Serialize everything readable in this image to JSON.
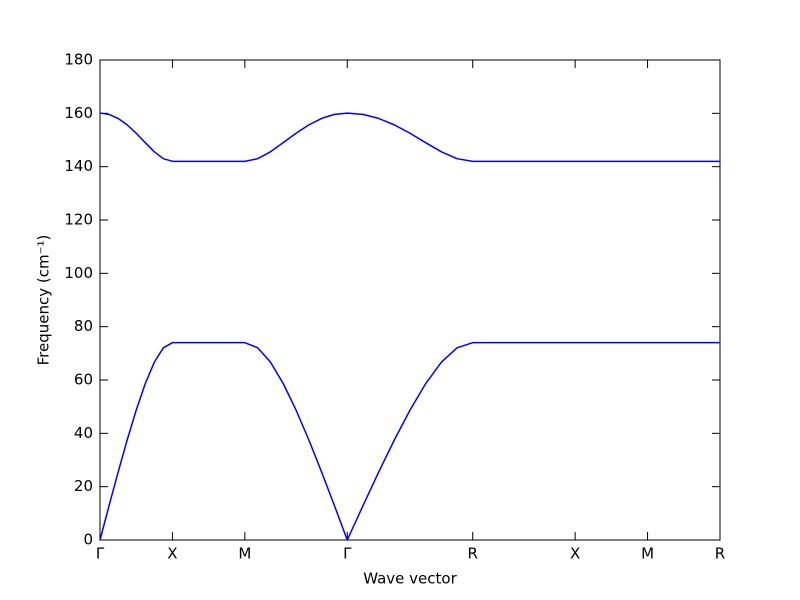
{
  "chart_data": {
    "type": "line",
    "xlabel": "Wave vector",
    "ylabel": "Frequency (cm⁻¹)",
    "x": [
      0,
      0.0625,
      0.125,
      0.1875,
      0.25,
      0.3125,
      0.375,
      0.4375,
      0.5,
      0.75,
      1.0,
      1.0884,
      1.1768,
      1.2651,
      1.3535,
      1.4419,
      1.5303,
      1.6186,
      1.707,
      1.8153,
      1.9235,
      2.0318,
      2.14,
      2.2483,
      2.3565,
      2.4648,
      2.573,
      3.28,
      3.78,
      4.28
    ],
    "series": [
      {
        "color": "#0000ff",
        "values": [
          0,
          12.85,
          25.43,
          37.5,
          48.71,
          58.64,
          66.69,
          72.08,
          74,
          74,
          74,
          72.08,
          66.69,
          58.64,
          48.71,
          37.5,
          25.43,
          12.85,
          0,
          12.85,
          25.43,
          37.5,
          48.71,
          58.64,
          66.69,
          72.08,
          74,
          74,
          74,
          74
        ]
      },
      {
        "color": "#0000ff",
        "values": [
          160.1,
          159.6,
          158.1,
          155.67,
          152.54,
          149,
          145.58,
          142.99,
          142,
          142,
          142,
          142.99,
          145.58,
          149,
          152.54,
          155.67,
          158.1,
          159.6,
          160.1,
          159.6,
          158.1,
          155.67,
          152.54,
          149,
          145.58,
          142.99,
          142,
          142,
          142,
          142
        ]
      }
    ],
    "xlim": [
      0,
      4.28
    ],
    "xticks": [
      {
        "value": 0,
        "label": "Γ"
      },
      {
        "value": 0.5,
        "label": "X"
      },
      {
        "value": 1.0,
        "label": "M"
      },
      {
        "value": 1.707,
        "label": "Γ"
      },
      {
        "value": 2.573,
        "label": "R"
      },
      {
        "value": 3.28,
        "label": "X"
      },
      {
        "value": 3.78,
        "label": "M"
      },
      {
        "value": 4.28,
        "label": "R"
      }
    ],
    "ylim": [
      0,
      180
    ],
    "yticks": [
      0,
      20,
      40,
      60,
      80,
      100,
      120,
      140,
      160,
      180
    ]
  }
}
